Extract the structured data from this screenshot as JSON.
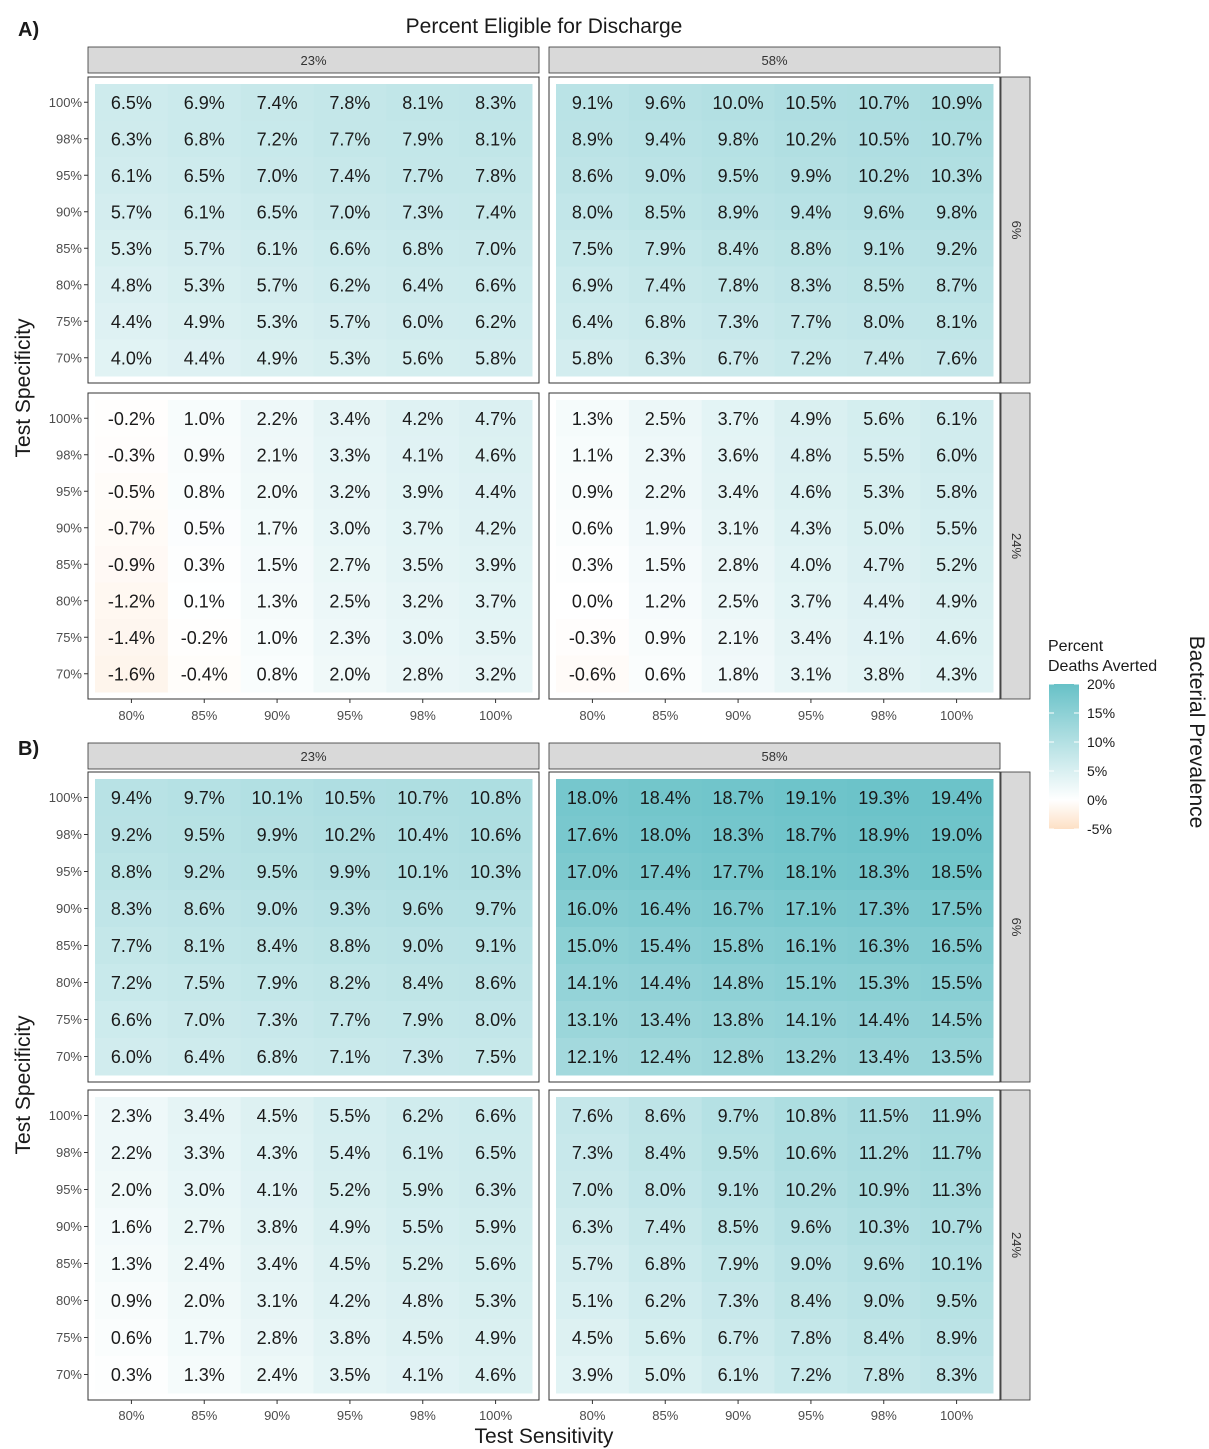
{
  "chart_data": {
    "type": "heatmap",
    "top_title": "Percent Eligible for Discharge",
    "xlabel": "Test Sensitivity",
    "ylabel": "Test Specificity",
    "right_title": "Bacterial Prevalence",
    "legend": {
      "title_line1": "Percent",
      "title_line2": "Deaths Averted",
      "ticks": [
        "20%",
        "15%",
        "10%",
        "5%",
        "0%",
        "-5%"
      ],
      "range": [
        -5,
        20
      ],
      "colors": {
        "low": "#fde0c5",
        "mid": "#ffffff",
        "high": "#67c1c7"
      }
    },
    "x_ticks": [
      "80%",
      "85%",
      "90%",
      "95%",
      "98%",
      "100%"
    ],
    "y_ticks": [
      "100%",
      "98%",
      "95%",
      "90%",
      "85%",
      "80%",
      "75%",
      "70%"
    ],
    "col_facets": [
      "23%",
      "58%"
    ],
    "row_facets": [
      "6%",
      "24%"
    ],
    "panels": [
      {
        "letter": "A)",
        "facets": [
          [
            [
              [
                "6.5%",
                "6.9%",
                "7.4%",
                "7.8%",
                "8.1%",
                "8.3%"
              ],
              [
                "6.3%",
                "6.8%",
                "7.2%",
                "7.7%",
                "7.9%",
                "8.1%"
              ],
              [
                "6.1%",
                "6.5%",
                "7.0%",
                "7.4%",
                "7.7%",
                "7.8%"
              ],
              [
                "5.7%",
                "6.1%",
                "6.5%",
                "7.0%",
                "7.3%",
                "7.4%"
              ],
              [
                "5.3%",
                "5.7%",
                "6.1%",
                "6.6%",
                "6.8%",
                "7.0%"
              ],
              [
                "4.8%",
                "5.3%",
                "5.7%",
                "6.2%",
                "6.4%",
                "6.6%"
              ],
              [
                "4.4%",
                "4.9%",
                "5.3%",
                "5.7%",
                "6.0%",
                "6.2%"
              ],
              [
                "4.0%",
                "4.4%",
                "4.9%",
                "5.3%",
                "5.6%",
                "5.8%"
              ]
            ],
            [
              [
                "9.1%",
                "9.6%",
                "10.0%",
                "10.5%",
                "10.7%",
                "10.9%"
              ],
              [
                "8.9%",
                "9.4%",
                "9.8%",
                "10.2%",
                "10.5%",
                "10.7%"
              ],
              [
                "8.6%",
                "9.0%",
                "9.5%",
                "9.9%",
                "10.2%",
                "10.3%"
              ],
              [
                "8.0%",
                "8.5%",
                "8.9%",
                "9.4%",
                "9.6%",
                "9.8%"
              ],
              [
                "7.5%",
                "7.9%",
                "8.4%",
                "8.8%",
                "9.1%",
                "9.2%"
              ],
              [
                "6.9%",
                "7.4%",
                "7.8%",
                "8.3%",
                "8.5%",
                "8.7%"
              ],
              [
                "6.4%",
                "6.8%",
                "7.3%",
                "7.7%",
                "8.0%",
                "8.1%"
              ],
              [
                "5.8%",
                "6.3%",
                "6.7%",
                "7.2%",
                "7.4%",
                "7.6%"
              ]
            ]
          ],
          [
            [
              [
                "-0.2%",
                "1.0%",
                "2.2%",
                "3.4%",
                "4.2%",
                "4.7%"
              ],
              [
                "-0.3%",
                "0.9%",
                "2.1%",
                "3.3%",
                "4.1%",
                "4.6%"
              ],
              [
                "-0.5%",
                "0.8%",
                "2.0%",
                "3.2%",
                "3.9%",
                "4.4%"
              ],
              [
                "-0.7%",
                "0.5%",
                "1.7%",
                "3.0%",
                "3.7%",
                "4.2%"
              ],
              [
                "-0.9%",
                "0.3%",
                "1.5%",
                "2.7%",
                "3.5%",
                "3.9%"
              ],
              [
                "-1.2%",
                "0.1%",
                "1.3%",
                "2.5%",
                "3.2%",
                "3.7%"
              ],
              [
                "-1.4%",
                "-0.2%",
                "1.0%",
                "2.3%",
                "3.0%",
                "3.5%"
              ],
              [
                "-1.6%",
                "-0.4%",
                "0.8%",
                "2.0%",
                "2.8%",
                "3.2%"
              ]
            ],
            [
              [
                "1.3%",
                "2.5%",
                "3.7%",
                "4.9%",
                "5.6%",
                "6.1%"
              ],
              [
                "1.1%",
                "2.3%",
                "3.6%",
                "4.8%",
                "5.5%",
                "6.0%"
              ],
              [
                "0.9%",
                "2.2%",
                "3.4%",
                "4.6%",
                "5.3%",
                "5.8%"
              ],
              [
                "0.6%",
                "1.9%",
                "3.1%",
                "4.3%",
                "5.0%",
                "5.5%"
              ],
              [
                "0.3%",
                "1.5%",
                "2.8%",
                "4.0%",
                "4.7%",
                "5.2%"
              ],
              [
                "0.0%",
                "1.2%",
                "2.5%",
                "3.7%",
                "4.4%",
                "4.9%"
              ],
              [
                "-0.3%",
                "0.9%",
                "2.1%",
                "3.4%",
                "4.1%",
                "4.6%"
              ],
              [
                "-0.6%",
                "0.6%",
                "1.8%",
                "3.1%",
                "3.8%",
                "4.3%"
              ]
            ]
          ]
        ]
      },
      {
        "letter": "B)",
        "facets": [
          [
            [
              [
                "9.4%",
                "9.7%",
                "10.1%",
                "10.5%",
                "10.7%",
                "10.8%"
              ],
              [
                "9.2%",
                "9.5%",
                "9.9%",
                "10.2%",
                "10.4%",
                "10.6%"
              ],
              [
                "8.8%",
                "9.2%",
                "9.5%",
                "9.9%",
                "10.1%",
                "10.3%"
              ],
              [
                "8.3%",
                "8.6%",
                "9.0%",
                "9.3%",
                "9.6%",
                "9.7%"
              ],
              [
                "7.7%",
                "8.1%",
                "8.4%",
                "8.8%",
                "9.0%",
                "9.1%"
              ],
              [
                "7.2%",
                "7.5%",
                "7.9%",
                "8.2%",
                "8.4%",
                "8.6%"
              ],
              [
                "6.6%",
                "7.0%",
                "7.3%",
                "7.7%",
                "7.9%",
                "8.0%"
              ],
              [
                "6.0%",
                "6.4%",
                "6.8%",
                "7.1%",
                "7.3%",
                "7.5%"
              ]
            ],
            [
              [
                "18.0%",
                "18.4%",
                "18.7%",
                "19.1%",
                "19.3%",
                "19.4%"
              ],
              [
                "17.6%",
                "18.0%",
                "18.3%",
                "18.7%",
                "18.9%",
                "19.0%"
              ],
              [
                "17.0%",
                "17.4%",
                "17.7%",
                "18.1%",
                "18.3%",
                "18.5%"
              ],
              [
                "16.0%",
                "16.4%",
                "16.7%",
                "17.1%",
                "17.3%",
                "17.5%"
              ],
              [
                "15.0%",
                "15.4%",
                "15.8%",
                "16.1%",
                "16.3%",
                "16.5%"
              ],
              [
                "14.1%",
                "14.4%",
                "14.8%",
                "15.1%",
                "15.3%",
                "15.5%"
              ],
              [
                "13.1%",
                "13.4%",
                "13.8%",
                "14.1%",
                "14.4%",
                "14.5%"
              ],
              [
                "12.1%",
                "12.4%",
                "12.8%",
                "13.2%",
                "13.4%",
                "13.5%"
              ]
            ]
          ],
          [
            [
              [
                "2.3%",
                "3.4%",
                "4.5%",
                "5.5%",
                "6.2%",
                "6.6%"
              ],
              [
                "2.2%",
                "3.3%",
                "4.3%",
                "5.4%",
                "6.1%",
                "6.5%"
              ],
              [
                "2.0%",
                "3.0%",
                "4.1%",
                "5.2%",
                "5.9%",
                "6.3%"
              ],
              [
                "1.6%",
                "2.7%",
                "3.8%",
                "4.9%",
                "5.5%",
                "5.9%"
              ],
              [
                "1.3%",
                "2.4%",
                "3.4%",
                "4.5%",
                "5.2%",
                "5.6%"
              ],
              [
                "0.9%",
                "2.0%",
                "3.1%",
                "4.2%",
                "4.8%",
                "5.3%"
              ],
              [
                "0.6%",
                "1.7%",
                "2.8%",
                "3.8%",
                "4.5%",
                "4.9%"
              ],
              [
                "0.3%",
                "1.3%",
                "2.4%",
                "3.5%",
                "4.1%",
                "4.6%"
              ]
            ],
            [
              [
                "7.6%",
                "8.6%",
                "9.7%",
                "10.8%",
                "11.5%",
                "11.9%"
              ],
              [
                "7.3%",
                "8.4%",
                "9.5%",
                "10.6%",
                "11.2%",
                "11.7%"
              ],
              [
                "7.0%",
                "8.0%",
                "9.1%",
                "10.2%",
                "10.9%",
                "11.3%"
              ],
              [
                "6.3%",
                "7.4%",
                "8.5%",
                "9.6%",
                "10.3%",
                "10.7%"
              ],
              [
                "5.7%",
                "6.8%",
                "7.9%",
                "9.0%",
                "9.6%",
                "10.1%"
              ],
              [
                "5.1%",
                "6.2%",
                "7.3%",
                "8.4%",
                "9.0%",
                "9.5%"
              ],
              [
                "4.5%",
                "5.6%",
                "6.7%",
                "7.8%",
                "8.4%",
                "8.9%"
              ],
              [
                "3.9%",
                "5.0%",
                "6.1%",
                "7.2%",
                "7.8%",
                "8.3%"
              ]
            ]
          ]
        ]
      }
    ]
  }
}
